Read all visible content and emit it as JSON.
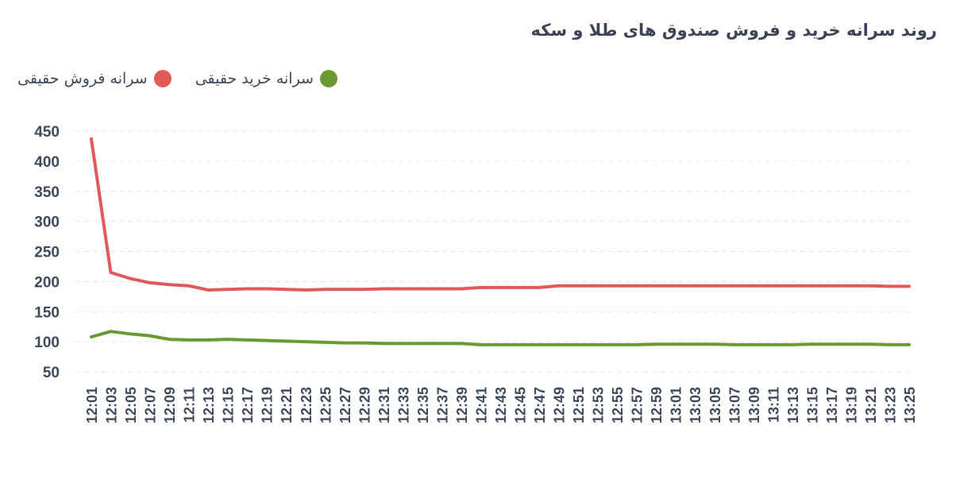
{
  "chart_data": {
    "type": "line",
    "title": "روند سرانه خرید و فروش صندوق های طلا و سکه",
    "xlabel": "",
    "ylabel": "",
    "ylim": [
      50,
      450
    ],
    "yticks": [
      50,
      100,
      150,
      200,
      250,
      300,
      350,
      400,
      450
    ],
    "grid": true,
    "legend_position": "top-left",
    "categories": [
      "12:01",
      "12:03",
      "12:05",
      "12:07",
      "12:09",
      "12:11",
      "12:13",
      "12:15",
      "12:17",
      "12:19",
      "12:21",
      "12:23",
      "12:25",
      "12:27",
      "12:29",
      "12:31",
      "12:33",
      "12:35",
      "12:37",
      "12:39",
      "12:41",
      "12:43",
      "12:45",
      "12:47",
      "12:49",
      "12:51",
      "12:53",
      "12:55",
      "12:57",
      "12:59",
      "13:01",
      "13:03",
      "13:05",
      "13:07",
      "13:09",
      "13:11",
      "13:13",
      "13:15",
      "13:17",
      "13:19",
      "13:21",
      "13:23",
      "13:25"
    ],
    "series": [
      {
        "name": "سرانه فروش حقیقی",
        "color": "#e05a5a",
        "values": [
          437,
          215,
          205,
          198,
          195,
          193,
          186,
          187,
          188,
          188,
          187,
          186,
          187,
          187,
          187,
          188,
          188,
          188,
          188,
          188,
          190,
          190,
          190,
          190,
          193,
          193,
          193,
          193,
          193,
          193,
          193,
          193,
          193,
          193,
          193,
          193,
          193,
          193,
          193,
          193,
          193,
          192,
          192
        ]
      },
      {
        "name": "سرانه خرید حقیقی",
        "color": "#6a9a34",
        "values": [
          108,
          117,
          113,
          110,
          104,
          103,
          103,
          104,
          103,
          102,
          101,
          100,
          99,
          98,
          98,
          97,
          97,
          97,
          97,
          97,
          95,
          95,
          95,
          95,
          95,
          95,
          95,
          95,
          95,
          96,
          96,
          96,
          96,
          95,
          95,
          95,
          95,
          96,
          96,
          96,
          96,
          95,
          95
        ]
      }
    ]
  }
}
